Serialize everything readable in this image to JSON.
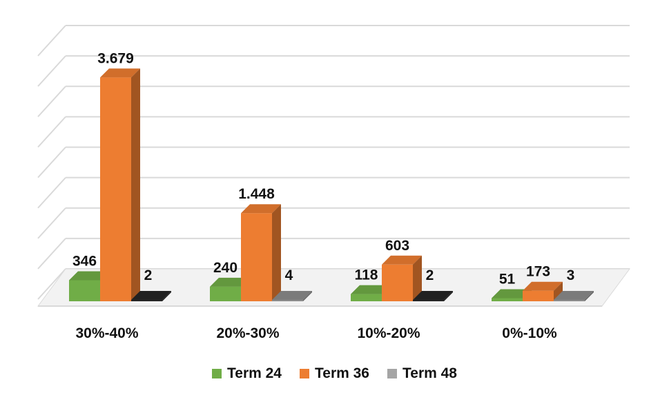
{
  "chart_data": {
    "type": "bar",
    "categories": [
      "30%-40%",
      "20%-30%",
      "10%-20%",
      "0%-10%"
    ],
    "series": [
      {
        "name": "Term 24",
        "values": [
          346,
          240,
          118,
          51
        ],
        "labels": [
          "346",
          "240",
          "118",
          "51"
        ],
        "color": "#70ad47"
      },
      {
        "name": "Term 36",
        "values": [
          3679,
          1448,
          603,
          173
        ],
        "labels": [
          "3.679",
          "1.448",
          "603",
          "173"
        ],
        "color": "#ed7d31"
      },
      {
        "name": "Term 48",
        "values": [
          2,
          4,
          2,
          3
        ],
        "labels": [
          "2",
          "4",
          "2",
          "3"
        ],
        "color": "#a5a5a5"
      }
    ],
    "ylim": [
      0,
      4000
    ],
    "grid": true,
    "legend_position": "bottom",
    "style": "3d-clustered-column"
  }
}
